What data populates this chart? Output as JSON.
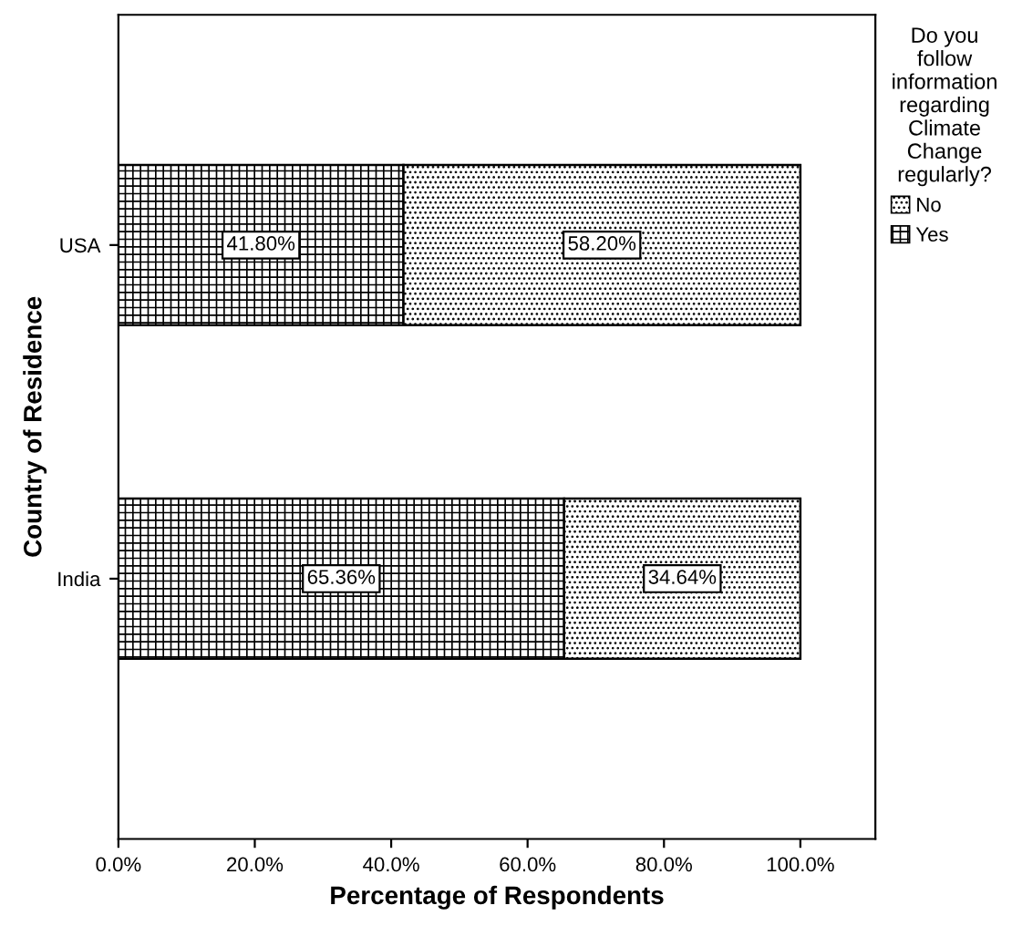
{
  "chart_data": {
    "type": "bar",
    "orientation": "horizontal",
    "stacked": true,
    "categories": [
      "USA",
      "India"
    ],
    "series": [
      {
        "name": "Yes",
        "color": "#000000",
        "values": [
          41.8,
          65.36
        ],
        "value_labels": [
          "41.80%",
          "65.36%"
        ]
      },
      {
        "name": "No",
        "color": "#000000",
        "values": [
          58.2,
          34.64
        ],
        "value_labels": [
          "58.20%",
          "34.64%"
        ]
      }
    ],
    "xlabel": "Percentage of Respondents",
    "ylabel": "Country of Residence",
    "legend_title": "Do you follow information regarding Climate Change regularly?",
    "legend": "right",
    "grid": false,
    "xlim": [
      0,
      111
    ],
    "xticks": [
      {
        "value": 0,
        "label": "0.0%"
      },
      {
        "value": 20,
        "label": "20.0%"
      },
      {
        "value": 40,
        "label": "40.0%"
      },
      {
        "value": 60,
        "label": "60.0%"
      },
      {
        "value": 80,
        "label": "80.0%"
      },
      {
        "value": 100,
        "label": "100.0%"
      }
    ]
  }
}
